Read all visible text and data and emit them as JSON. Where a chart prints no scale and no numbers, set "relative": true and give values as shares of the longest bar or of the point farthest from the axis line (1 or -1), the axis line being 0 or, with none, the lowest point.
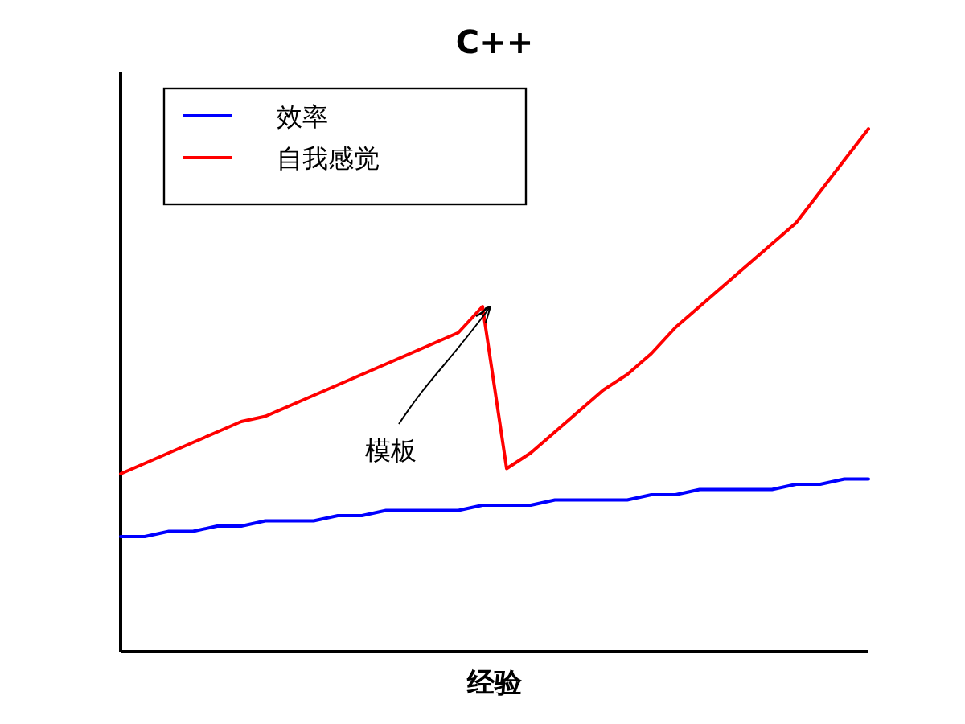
{
  "chart_data": {
    "type": "line",
    "title": "C++",
    "xlabel": "经验",
    "relative": true,
    "legend": "top left",
    "line_style": "solid",
    "categories": [
      null,
      null,
      null,
      null,
      null,
      null,
      null,
      null,
      null,
      null,
      null,
      null,
      null,
      null,
      null,
      null,
      null,
      null,
      null,
      null,
      null,
      null,
      null,
      null,
      null,
      null,
      null,
      null,
      null,
      null,
      null,
      null
    ],
    "series": [
      {
        "name": "效率",
        "color": "#0000ff",
        "values": [
          0.22,
          0.22,
          0.23,
          0.23,
          0.24,
          0.24,
          0.25,
          0.25,
          0.25,
          0.26,
          0.26,
          0.27,
          0.27,
          0.27,
          0.27,
          0.28,
          0.28,
          0.28,
          0.29,
          0.29,
          0.29,
          0.29,
          0.3,
          0.3,
          0.31,
          0.31,
          0.31,
          0.31,
          0.32,
          0.32,
          0.33,
          0.33
        ]
      },
      {
        "name": "自我感觉",
        "color": "#ff0000",
        "values": [
          0.34,
          0.36,
          0.38,
          0.4,
          0.42,
          0.44,
          0.45,
          0.47,
          0.49,
          0.51,
          0.53,
          0.55,
          0.57,
          0.59,
          0.61,
          0.66,
          0.35,
          0.38,
          0.42,
          0.46,
          0.5,
          0.53,
          0.57,
          0.62,
          0.66,
          0.7,
          0.74,
          0.78,
          0.82,
          0.88,
          0.94,
          1.0
        ]
      }
    ],
    "annotations": [
      "模板"
    ]
  }
}
